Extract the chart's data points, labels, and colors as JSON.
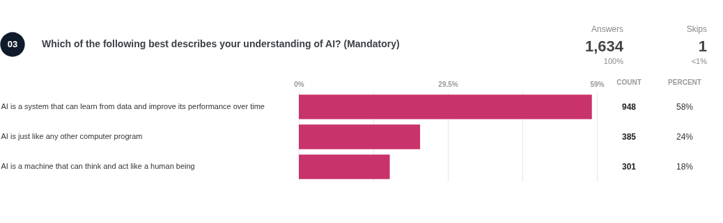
{
  "chart_data": {
    "type": "bar",
    "orientation": "horizontal",
    "title": "Which of the following best describes your understanding of AI? (Mandatory)",
    "categories": [
      "AI is a system that can learn from data and improve its performance over time",
      "AI is just like any other computer program",
      "AI is a machine that can think and act like a human being"
    ],
    "values": [
      58,
      24,
      18
    ],
    "value_labels": [
      "58%",
      "24%",
      "18%"
    ],
    "color": "#c9336b",
    "xlim": [
      0,
      59
    ],
    "xticks": [
      {
        "value": 0,
        "label": "0%"
      },
      {
        "value": 14.75,
        "label": null
      },
      {
        "value": 29.5,
        "label": "29.5%"
      },
      {
        "value": 44.25,
        "label": null
      },
      {
        "value": 59,
        "label": "59%"
      }
    ],
    "grid": "x",
    "annotations": [
      "03",
      "Answers",
      "1,634",
      "100%",
      "Skips",
      "1",
      "<1%",
      "COUNT",
      "PERCENT",
      "948",
      "385",
      "301"
    ]
  }
}
